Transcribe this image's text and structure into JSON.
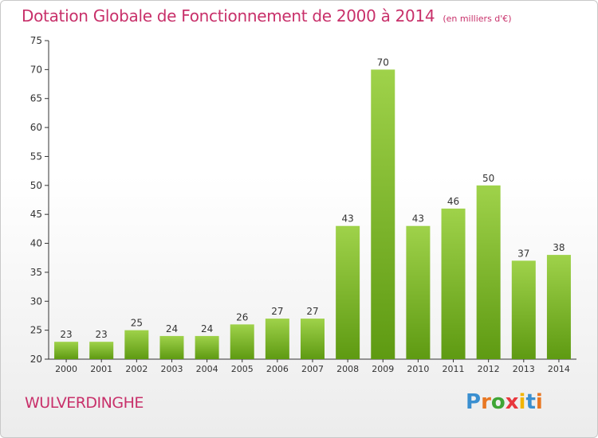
{
  "header": {
    "title": "Dotation Globale de Fonctionnement de 2000 à 2014",
    "subtitle": "(en milliers d'€)"
  },
  "footer": {
    "place": "WULVERDINGHE",
    "brand_letters": [
      "P",
      "r",
      "o",
      "x",
      "i",
      "t",
      "i"
    ],
    "brand_colors": [
      "#3a8fd0",
      "#e87722",
      "#3fa535",
      "#e8373d",
      "#f2b400",
      "#3a8fd0",
      "#e87722"
    ]
  },
  "chart_data": {
    "type": "bar",
    "categories": [
      "2000",
      "2001",
      "2002",
      "2003",
      "2004",
      "2005",
      "2006",
      "2007",
      "2008",
      "2009",
      "2010",
      "2011",
      "2012",
      "2013",
      "2014"
    ],
    "values": [
      23,
      23,
      25,
      24,
      24,
      26,
      27,
      27,
      43,
      70,
      43,
      46,
      50,
      37,
      38
    ],
    "ylim": [
      20,
      75
    ],
    "yticks": [
      20,
      25,
      30,
      35,
      40,
      45,
      50,
      55,
      60,
      65,
      70,
      75
    ],
    "grid": false,
    "bar_color": "#7db52a"
  }
}
